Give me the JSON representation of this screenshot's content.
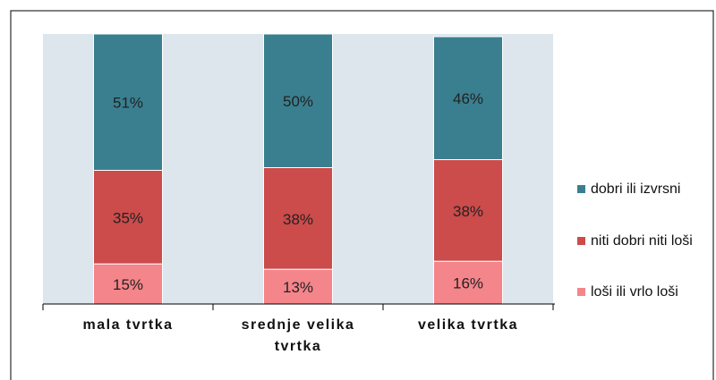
{
  "chart_data": {
    "type": "stacked_bar",
    "categories": [
      "mala tvrtka",
      "srednje velika tvrtka",
      "velika tvrtka"
    ],
    "series": [
      {
        "name": "loši ili vrlo loši",
        "color": "#f4858a",
        "values": [
          15,
          13,
          16
        ],
        "value_labels": [
          "15%",
          "13%",
          "16%"
        ]
      },
      {
        "name": "niti dobri niti loši",
        "color": "#cc4b4b",
        "values": [
          35,
          38,
          38
        ],
        "value_labels": [
          "35%",
          "38%",
          "38%"
        ]
      },
      {
        "name": "dobri ili izvrsni",
        "color": "#3a7f8f",
        "values": [
          51,
          50,
          46
        ],
        "value_labels": [
          "51%",
          "50%",
          "46%"
        ]
      }
    ],
    "ylim": [
      0,
      101
    ],
    "legend": "right"
  }
}
